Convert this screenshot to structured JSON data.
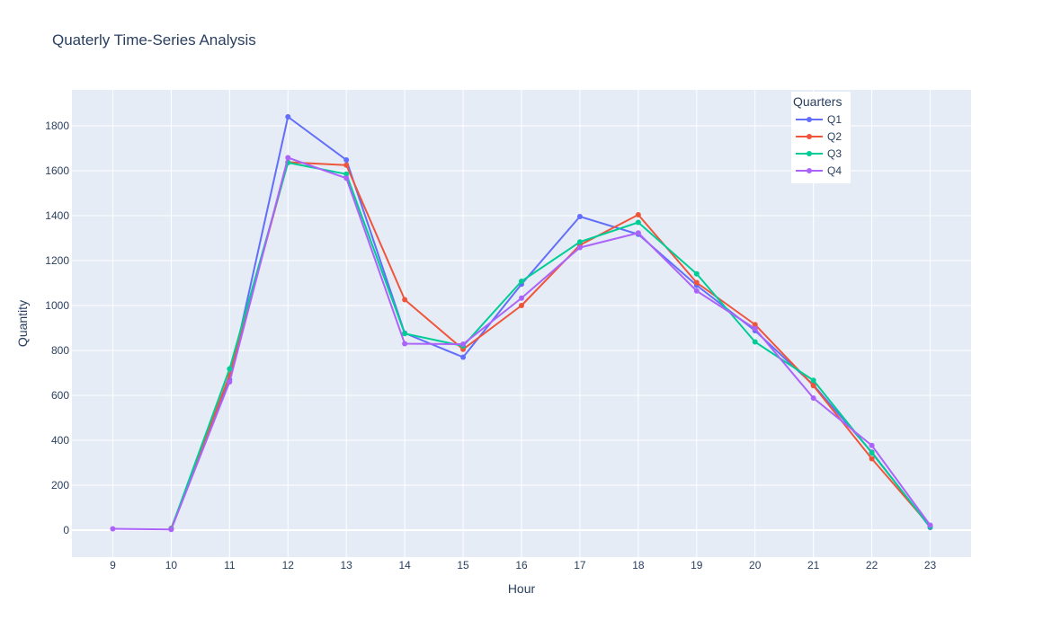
{
  "chart_data": {
    "type": "line",
    "title": "Quaterly Time-Series Analysis",
    "xlabel": "Hour",
    "ylabel": "Quantity",
    "x": [
      9,
      10,
      11,
      12,
      13,
      14,
      15,
      16,
      17,
      18,
      19,
      20,
      21,
      22,
      23
    ],
    "xlim": [
      8.3,
      23.7
    ],
    "ylim": [
      -120,
      1960
    ],
    "yticks": [
      0,
      200,
      400,
      600,
      800,
      1000,
      1200,
      1400,
      1600,
      1800
    ],
    "grid": true,
    "legend": {
      "title": "Quarters",
      "position": "top-right"
    },
    "series": [
      {
        "name": "Q1",
        "color": "#636efa",
        "values": [
          null,
          5,
          670,
          1840,
          1648,
          877,
          770,
          1095,
          1396,
          1317,
          1090,
          888,
          646,
          347,
          12
        ]
      },
      {
        "name": "Q2",
        "color": "#ef553b",
        "values": [
          null,
          8,
          690,
          1638,
          1625,
          1026,
          805,
          1000,
          1269,
          1404,
          1102,
          915,
          643,
          318,
          18
        ]
      },
      {
        "name": "Q3",
        "color": "#00cc96",
        "values": [
          null,
          6,
          718,
          1636,
          1585,
          875,
          820,
          1108,
          1283,
          1370,
          1141,
          838,
          667,
          344,
          15
        ]
      },
      {
        "name": "Q4",
        "color": "#ab63fa",
        "values": [
          6,
          3,
          660,
          1658,
          1567,
          830,
          828,
          1033,
          1258,
          1323,
          1065,
          897,
          588,
          377,
          22
        ]
      }
    ]
  }
}
